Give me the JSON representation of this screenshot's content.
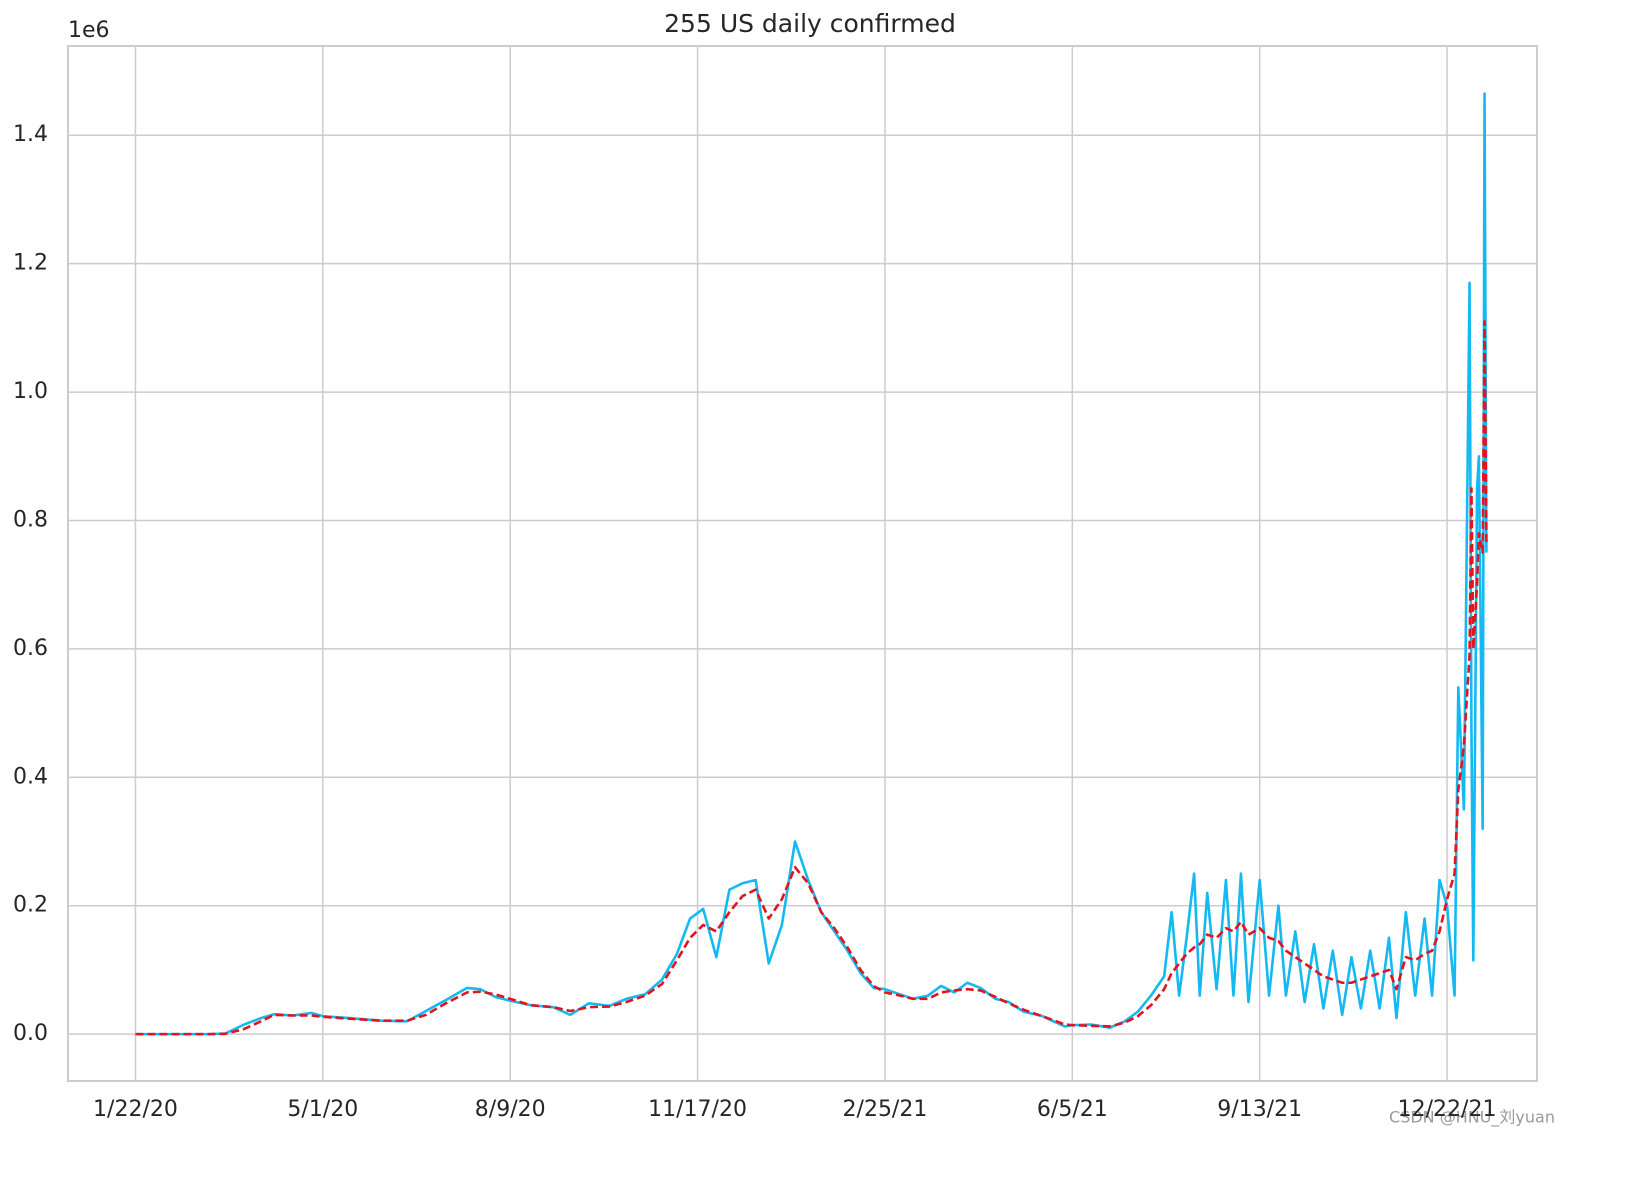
{
  "chart_data": {
    "type": "line",
    "title": "255 US daily confirmed",
    "y_offset_label": "1e6",
    "watermark": "CSDN @HNU_刘yuan",
    "grid": true,
    "x": [
      "1/22/20",
      "2/1/20",
      "2/15/20",
      "3/1/20",
      "3/10/20",
      "3/20/20",
      "3/29/20",
      "4/5/20",
      "4/15/20",
      "4/25/20",
      "5/1/20",
      "5/15/20",
      "6/1/20",
      "6/15/20",
      "6/25/20",
      "7/5/20",
      "7/17/20",
      "7/24/20",
      "8/1/20",
      "8/9/20",
      "8/20/20",
      "9/1/20",
      "9/10/20",
      "9/20/20",
      "10/1/20",
      "10/10/20",
      "10/20/20",
      "10/29/20",
      "11/6/20",
      "11/13/20",
      "11/20/20",
      "11/27/20",
      "12/4/20",
      "12/11/20",
      "12/18/20",
      "12/25/20",
      "1/1/21",
      "1/8/21",
      "1/15/21",
      "1/22/21",
      "1/29/21",
      "2/5/21",
      "2/12/21",
      "2/19/21",
      "2/25/21",
      "3/5/21",
      "3/12/21",
      "3/20/21",
      "3/27/21",
      "4/3/21",
      "4/10/21",
      "4/17/21",
      "4/25/21",
      "5/2/21",
      "5/10/21",
      "5/20/21",
      "6/1/21",
      "6/5/21",
      "6/15/21",
      "6/25/21",
      "7/3/21",
      "7/10/21",
      "7/17/21",
      "7/24/21",
      "7/28/21",
      "8/1/21",
      "8/5/21",
      "8/9/21",
      "8/12/21",
      "8/16/21",
      "8/21/21",
      "8/26/21",
      "8/30/21",
      "9/3/21",
      "9/7/21",
      "9/13/21",
      "9/18/21",
      "9/23/21",
      "9/27/21",
      "10/2/21",
      "10/7/21",
      "10/12/21",
      "10/17/21",
      "10/22/21",
      "10/27/21",
      "11/1/21",
      "11/6/21",
      "11/11/21",
      "11/16/21",
      "11/21/21",
      "11/25/21",
      "11/30/21",
      "12/5/21",
      "12/10/21",
      "12/14/21",
      "12/18/21",
      "12/22/21",
      "12/26/21",
      "12/28/21",
      "12/31/21",
      "1/3/22",
      "1/4/22",
      "1/5/22",
      "1/7/22",
      "1/8/22",
      "1/10/22",
      "1/11/22",
      "1/12/22"
    ],
    "series": [
      {
        "color": "#15b9f2",
        "linestyle": "solid",
        "values": [
          0,
          0,
          0,
          0,
          1000,
          15000,
          25000,
          31000,
          29000,
          33000,
          28000,
          25000,
          21000,
          20000,
          36000,
          52000,
          72000,
          70000,
          58000,
          52000,
          45000,
          42000,
          30000,
          48000,
          44000,
          55000,
          62000,
          85000,
          125000,
          180000,
          195000,
          120000,
          225000,
          235000,
          240000,
          110000,
          170000,
          300000,
          240000,
          190000,
          160000,
          130000,
          95000,
          72000,
          70000,
          62000,
          55000,
          60000,
          75000,
          65000,
          80000,
          72000,
          55000,
          50000,
          35000,
          28000,
          12000,
          14000,
          15000,
          10000,
          20000,
          35000,
          60000,
          90000,
          190000,
          60000,
          150000,
          250000,
          60000,
          220000,
          70000,
          240000,
          60000,
          250000,
          50000,
          240000,
          60000,
          200000,
          60000,
          160000,
          50000,
          140000,
          40000,
          130000,
          30000,
          120000,
          40000,
          130000,
          40000,
          150000,
          25000,
          190000,
          60000,
          180000,
          60000,
          240000,
          200000,
          60000,
          540000,
          350000,
          1170000,
          480000,
          115000,
          850000,
          900000,
          320000,
          1465000,
          750000
        ]
      },
      {
        "color": "#e3141c",
        "linestyle": "dashed",
        "values": [
          0,
          0,
          0,
          0,
          500,
          8000,
          20000,
          30000,
          29000,
          29000,
          27000,
          24000,
          21000,
          21000,
          30000,
          47000,
          65000,
          66000,
          62000,
          55000,
          45000,
          42000,
          36000,
          42000,
          43000,
          50000,
          60000,
          78000,
          115000,
          150000,
          170000,
          160000,
          190000,
          215000,
          225000,
          180000,
          210000,
          260000,
          235000,
          190000,
          165000,
          135000,
          100000,
          75000,
          65000,
          60000,
          55000,
          55000,
          65000,
          68000,
          70000,
          68000,
          58000,
          48000,
          38000,
          28000,
          15000,
          14000,
          13000,
          12000,
          18000,
          28000,
          45000,
          70000,
          95000,
          110000,
          125000,
          135000,
          140000,
          155000,
          150000,
          165000,
          160000,
          175000,
          155000,
          165000,
          150000,
          145000,
          130000,
          120000,
          110000,
          100000,
          90000,
          85000,
          80000,
          80000,
          85000,
          90000,
          95000,
          100000,
          70000,
          120000,
          115000,
          125000,
          130000,
          160000,
          210000,
          250000,
          380000,
          450000,
          590000,
          850000,
          600000,
          700000,
          780000,
          750000,
          1110000,
          760000
        ]
      }
    ],
    "xlim": [
      "12/17/19",
      "2/8/22"
    ],
    "xticks": [
      "1/22/20",
      "5/1/20",
      "8/9/20",
      "11/17/20",
      "2/25/21",
      "6/5/21",
      "9/13/21",
      "12/22/21"
    ],
    "ylim": [
      -73000,
      1539000
    ],
    "yticks": [
      {
        "value": 0,
        "label": "0.0"
      },
      {
        "value": 200000,
        "label": "0.2"
      },
      {
        "value": 400000,
        "label": "0.4"
      },
      {
        "value": 600000,
        "label": "0.6"
      },
      {
        "value": 800000,
        "label": "0.8"
      },
      {
        "value": 1000000,
        "label": "1.0"
      },
      {
        "value": 1200000,
        "label": "1.2"
      },
      {
        "value": 1400000,
        "label": "1.4"
      }
    ]
  }
}
